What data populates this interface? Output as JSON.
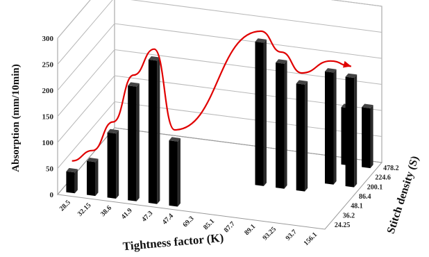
{
  "chart_data": {
    "type": "bar",
    "subtype": "3d-bar",
    "title": "",
    "xlabel": "Tightness factor (K)",
    "ylabel": "Absorption (mm/10min)",
    "zlabel": "Stitch density (S)",
    "ylim": [
      0,
      300
    ],
    "yticks": [
      "0",
      "50",
      "100",
      "150",
      "200",
      "250",
      "300"
    ],
    "x_categories": [
      "28.5",
      "32.15",
      "38.6",
      "41.9",
      "47.3",
      "47.4",
      "69.3",
      "85.1",
      "87.7",
      "89.1",
      "93.25",
      "93.7",
      "156.1"
    ],
    "z_categories": [
      "24.25",
      "36.2",
      "48.1",
      "86.4",
      "200.1",
      "224.6",
      "478.2"
    ],
    "grid": true,
    "bar_color": "#000000",
    "trend_color": "#e00000",
    "values": [
      {
        "x": "28.5",
        "z": "24.25",
        "y": 40
      },
      {
        "x": "32.15",
        "z": "24.25",
        "y": 65
      },
      {
        "x": "38.6",
        "z": "24.25",
        "y": 125
      },
      {
        "x": "41.9",
        "z": "24.25",
        "y": 220
      },
      {
        "x": "47.3",
        "z": "24.25",
        "y": 275
      },
      {
        "x": "47.4",
        "z": "24.25",
        "y": 125
      },
      {
        "x": "87.7",
        "z": "86.4",
        "y": 275
      },
      {
        "x": "89.1",
        "z": "86.4",
        "y": 240
      },
      {
        "x": "93.25",
        "z": "86.4",
        "y": 205
      },
      {
        "x": "93.7",
        "z": "200.1",
        "y": 215
      },
      {
        "x": "156.1",
        "z": "200.1",
        "y": 210
      },
      {
        "x": "93.7",
        "z": "478.2",
        "y": 110
      },
      {
        "x": "156.1",
        "z": "478.2",
        "y": 115
      }
    ]
  }
}
